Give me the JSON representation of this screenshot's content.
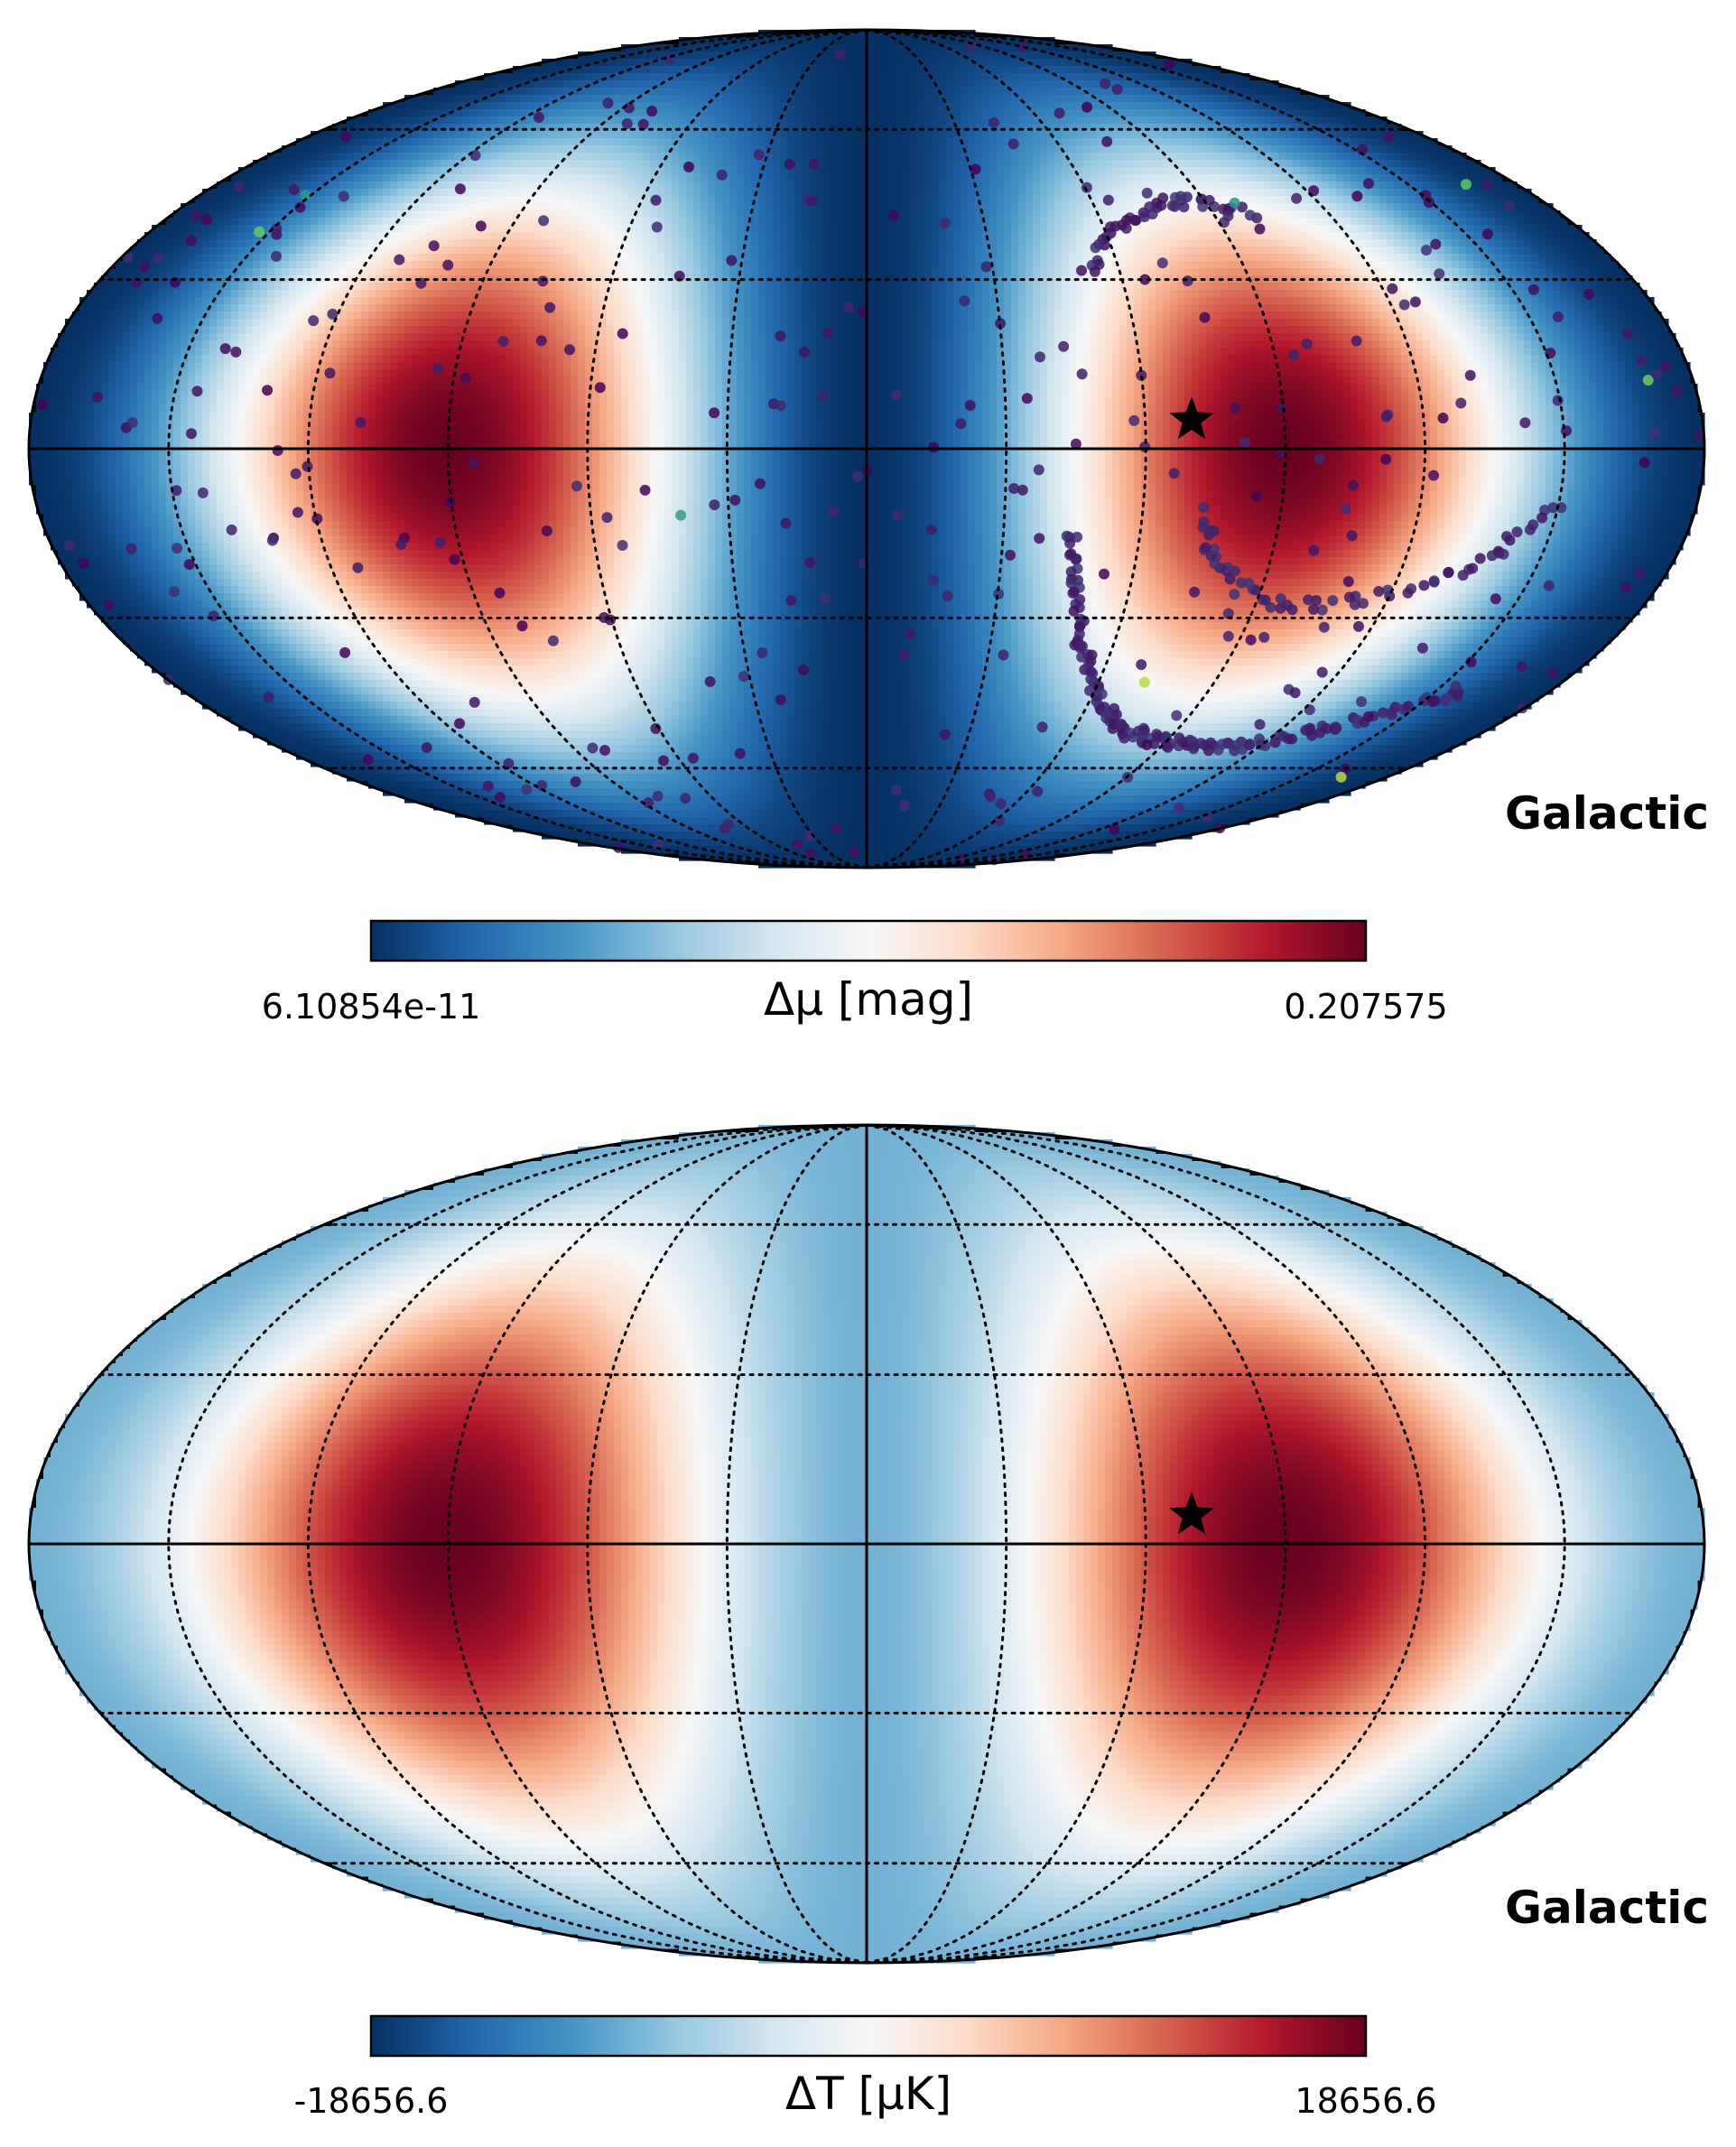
{
  "chart_data": [
    {
      "type": "heatmap",
      "projection": "mollweide",
      "coord_label": "Galactic",
      "colormap": "RdBu_r",
      "colorbar": {
        "min_label": "6.10854e-11",
        "max_label": "0.207575",
        "label": "Δμ [mag]"
      },
      "graticule": {
        "meridians_deg": [
          -150,
          -120,
          -90,
          -60,
          -30,
          30,
          60,
          90,
          120,
          150
        ],
        "parallels_deg": [
          -60,
          -30,
          30,
          60
        ]
      },
      "hotspots": [
        {
          "lon": 110,
          "lat": 0
        },
        {
          "lon": -70,
          "lat": 5
        }
      ],
      "star_marker": {
        "lon": -70,
        "lat": 5
      },
      "overlay_points": {
        "description_color": "viridis",
        "arc_stream": [
          [
            -45,
            -15
          ],
          [
            -48,
            -25
          ],
          [
            -52,
            -35
          ],
          [
            -58,
            -42
          ],
          [
            -66,
            -48
          ],
          [
            -76,
            -52
          ],
          [
            -88,
            -54
          ],
          [
            -100,
            -55
          ],
          [
            -115,
            -55
          ],
          [
            -130,
            -52
          ],
          [
            -145,
            -48
          ],
          [
            -158,
            -44
          ]
        ],
        "ring_stream": [
          [
            -150,
            -10
          ],
          [
            -140,
            -18
          ],
          [
            -128,
            -24
          ],
          [
            -112,
            -27
          ],
          [
            -96,
            -28
          ],
          [
            -84,
            -24
          ],
          [
            -76,
            -18
          ],
          [
            -74,
            -10
          ]
        ],
        "upper_arc": [
          [
            -100,
            42
          ],
          [
            -90,
            45
          ],
          [
            -80,
            45
          ],
          [
            -70,
            42
          ],
          [
            -60,
            38
          ],
          [
            -52,
            32
          ]
        ],
        "scatter_count": 320
      }
    },
    {
      "type": "heatmap",
      "projection": "mollweide",
      "coord_label": "Galactic",
      "colormap": "RdBu_r",
      "colorbar": {
        "min_label": "-18656.6",
        "max_label": "18656.6",
        "label": "ΔT [μK]"
      },
      "graticule": {
        "meridians_deg": [
          -150,
          -120,
          -90,
          -60,
          -30,
          30,
          60,
          90,
          120,
          150
        ],
        "parallels_deg": [
          -60,
          -30,
          30,
          60
        ]
      },
      "hotspots": [
        {
          "lon": 110,
          "lat": 0
        },
        {
          "lon": -70,
          "lat": 5
        }
      ],
      "star_marker": {
        "lon": -70,
        "lat": 5
      }
    }
  ]
}
